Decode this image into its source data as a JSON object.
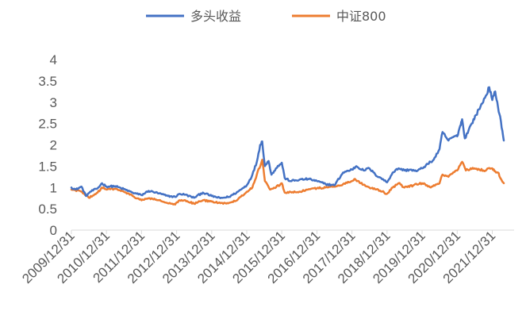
{
  "chart_data": {
    "type": "line",
    "title": "",
    "xlabel": "",
    "ylabel": "",
    "ylim": [
      0,
      4
    ],
    "yticks": [
      "0",
      "0.5",
      "1",
      "1.5",
      "2",
      "2.5",
      "3",
      "3.5",
      "4"
    ],
    "grid": false,
    "legend_position": "top-center",
    "x_tick_labels": [
      "2009/12/31",
      "2010/12/31",
      "2011/12/31",
      "2012/12/31",
      "2013/12/31",
      "2014/12/31",
      "2015/12/31",
      "2016/12/31",
      "2017/12/31",
      "2018/12/31",
      "2019/12/31",
      "2020/12/31",
      "2021/12/31"
    ],
    "x_start": "2009/12/31",
    "x_end": "2022/04/30",
    "series": [
      {
        "name": "多头收益",
        "color": "#4472C4",
        "points": [
          [
            "2009/12/31",
            1.0
          ],
          [
            "2010/02/15",
            0.95
          ],
          [
            "2010/04/15",
            1.02
          ],
          [
            "2010/06/01",
            0.8
          ],
          [
            "2010/07/15",
            0.9
          ],
          [
            "2010/09/30",
            0.98
          ],
          [
            "2010/11/15",
            1.1
          ],
          [
            "2010/12/31",
            1.02
          ],
          [
            "2011/03/31",
            1.03
          ],
          [
            "2011/06/30",
            0.96
          ],
          [
            "2011/09/30",
            0.88
          ],
          [
            "2011/12/31",
            0.82
          ],
          [
            "2012/03/15",
            0.92
          ],
          [
            "2012/06/30",
            0.86
          ],
          [
            "2012/09/30",
            0.8
          ],
          [
            "2012/12/15",
            0.78
          ],
          [
            "2013/01/31",
            0.85
          ],
          [
            "2013/03/31",
            0.83
          ],
          [
            "2013/06/30",
            0.76
          ],
          [
            "2013/09/30",
            0.88
          ],
          [
            "2013/12/31",
            0.8
          ],
          [
            "2014/03/31",
            0.75
          ],
          [
            "2014/06/30",
            0.78
          ],
          [
            "2014/09/30",
            0.9
          ],
          [
            "2014/12/31",
            1.05
          ],
          [
            "2015/02/28",
            1.3
          ],
          [
            "2015/04/15",
            1.6
          ],
          [
            "2015/05/20",
            2.0
          ],
          [
            "2015/06/10",
            2.08
          ],
          [
            "2015/07/08",
            1.5
          ],
          [
            "2015/08/15",
            1.62
          ],
          [
            "2015/09/15",
            1.3
          ],
          [
            "2015/10/31",
            1.45
          ],
          [
            "2015/12/31",
            1.58
          ],
          [
            "2016/01/31",
            1.22
          ],
          [
            "2016/03/31",
            1.15
          ],
          [
            "2016/06/30",
            1.18
          ],
          [
            "2016/09/30",
            1.2
          ],
          [
            "2016/12/31",
            1.15
          ],
          [
            "2017/03/31",
            1.08
          ],
          [
            "2017/06/30",
            1.05
          ],
          [
            "2017/09/30",
            1.35
          ],
          [
            "2017/12/31",
            1.42
          ],
          [
            "2018/02/15",
            1.5
          ],
          [
            "2018/04/30",
            1.4
          ],
          [
            "2018/06/30",
            1.45
          ],
          [
            "2018/08/31",
            1.3
          ],
          [
            "2018/10/31",
            1.22
          ],
          [
            "2018/12/31",
            1.12
          ],
          [
            "2019/02/28",
            1.35
          ],
          [
            "2019/04/30",
            1.45
          ],
          [
            "2019/06/30",
            1.4
          ],
          [
            "2019/08/31",
            1.42
          ],
          [
            "2019/10/31",
            1.38
          ],
          [
            "2019/12/31",
            1.45
          ],
          [
            "2020/02/28",
            1.55
          ],
          [
            "2020/04/30",
            1.65
          ],
          [
            "2020/06/30",
            1.9
          ],
          [
            "2020/07/31",
            2.3
          ],
          [
            "2020/09/30",
            2.1
          ],
          [
            "2020/11/30",
            2.2
          ],
          [
            "2020/12/31",
            2.2
          ],
          [
            "2021/01/31",
            2.45
          ],
          [
            "2021/02/20",
            2.6
          ],
          [
            "2021/03/20",
            2.15
          ],
          [
            "2021/05/31",
            2.5
          ],
          [
            "2021/07/15",
            2.7
          ],
          [
            "2021/08/31",
            2.9
          ],
          [
            "2021/10/15",
            3.1
          ],
          [
            "2021/11/30",
            3.35
          ],
          [
            "2021/12/31",
            3.05
          ],
          [
            "2022/01/31",
            3.25
          ],
          [
            "2022/02/28",
            2.9
          ],
          [
            "2022/03/31",
            2.55
          ],
          [
            "2022/04/30",
            2.1
          ]
        ]
      },
      {
        "name": "中证800",
        "color": "#ED7D31",
        "points": [
          [
            "2009/12/31",
            0.95
          ],
          [
            "2010/03/31",
            0.92
          ],
          [
            "2010/06/30",
            0.76
          ],
          [
            "2010/09/30",
            0.88
          ],
          [
            "2010/11/15",
            1.0
          ],
          [
            "2010/12/31",
            0.95
          ],
          [
            "2011/03/31",
            0.97
          ],
          [
            "2011/06/30",
            0.9
          ],
          [
            "2011/09/30",
            0.8
          ],
          [
            "2011/12/31",
            0.7
          ],
          [
            "2012/03/15",
            0.75
          ],
          [
            "2012/06/30",
            0.7
          ],
          [
            "2012/09/30",
            0.63
          ],
          [
            "2012/12/15",
            0.6
          ],
          [
            "2013/01/31",
            0.7
          ],
          [
            "2013/03/31",
            0.7
          ],
          [
            "2013/06/30",
            0.62
          ],
          [
            "2013/09/30",
            0.7
          ],
          [
            "2013/12/31",
            0.67
          ],
          [
            "2014/03/31",
            0.63
          ],
          [
            "2014/06/30",
            0.64
          ],
          [
            "2014/09/30",
            0.72
          ],
          [
            "2014/12/31",
            0.9
          ],
          [
            "2015/02/28",
            1.0
          ],
          [
            "2015/04/15",
            1.3
          ],
          [
            "2015/06/10",
            1.65
          ],
          [
            "2015/07/08",
            1.15
          ],
          [
            "2015/08/31",
            0.95
          ],
          [
            "2015/10/31",
            1.0
          ],
          [
            "2015/12/31",
            1.1
          ],
          [
            "2016/01/31",
            0.88
          ],
          [
            "2016/06/30",
            0.9
          ],
          [
            "2016/09/30",
            0.95
          ],
          [
            "2016/12/31",
            0.98
          ],
          [
            "2017/03/31",
            1.0
          ],
          [
            "2017/06/30",
            1.02
          ],
          [
            "2017/09/30",
            1.08
          ],
          [
            "2017/12/31",
            1.15
          ],
          [
            "2018/01/31",
            1.2
          ],
          [
            "2018/03/31",
            1.1
          ],
          [
            "2018/06/30",
            1.0
          ],
          [
            "2018/09/30",
            0.95
          ],
          [
            "2018/12/31",
            0.85
          ],
          [
            "2019/02/28",
            1.0
          ],
          [
            "2019/04/30",
            1.1
          ],
          [
            "2019/06/30",
            1.0
          ],
          [
            "2019/09/30",
            1.05
          ],
          [
            "2019/12/31",
            1.1
          ],
          [
            "2020/03/31",
            1.0
          ],
          [
            "2020/06/30",
            1.1
          ],
          [
            "2020/07/31",
            1.3
          ],
          [
            "2020/09/30",
            1.25
          ],
          [
            "2020/12/31",
            1.4
          ],
          [
            "2021/02/20",
            1.6
          ],
          [
            "2021/03/31",
            1.4
          ],
          [
            "2021/06/30",
            1.45
          ],
          [
            "2021/09/30",
            1.4
          ],
          [
            "2021/12/31",
            1.45
          ],
          [
            "2022/01/31",
            1.38
          ],
          [
            "2022/02/28",
            1.35
          ],
          [
            "2022/03/31",
            1.2
          ],
          [
            "2022/04/30",
            1.1
          ]
        ]
      }
    ]
  }
}
